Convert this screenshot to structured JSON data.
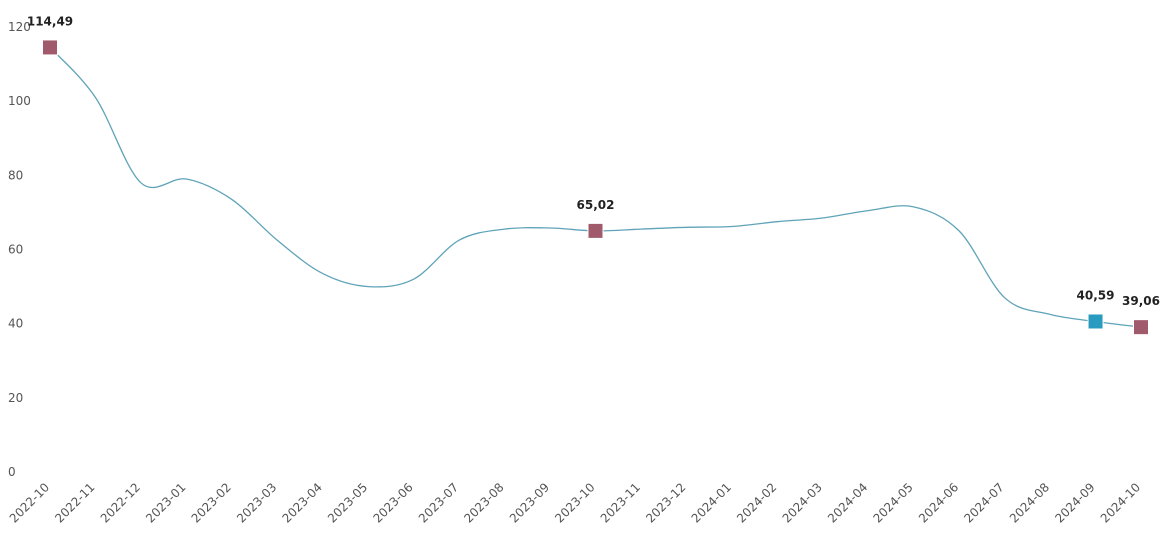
{
  "chart_data": {
    "type": "line",
    "title": "",
    "xlabel": "",
    "ylabel": "",
    "ylim": [
      0,
      120
    ],
    "yticks": [
      0,
      20,
      40,
      60,
      80,
      100,
      120
    ],
    "grid": false,
    "categories": [
      "2022-10",
      "2022-11",
      "2022-12",
      "2023-01",
      "2023-02",
      "2023-03",
      "2023-04",
      "2023-05",
      "2023-06",
      "2023-07",
      "2023-08",
      "2023-09",
      "2023-10",
      "2023-11",
      "2023-12",
      "2024-01",
      "2024-02",
      "2024-03",
      "2024-04",
      "2024-05",
      "2024-06",
      "2024-07",
      "2024-08",
      "2024-09",
      "2024-10"
    ],
    "series": [
      {
        "color": "#5fa3b8",
        "values": [
          114.49,
          101,
          78,
          79,
          73.5,
          62.5,
          53.5,
          50,
          52,
          62.5,
          65.5,
          65.8,
          65.02,
          65.5,
          66,
          66.2,
          67.5,
          68.5,
          70.5,
          71.5,
          65,
          47,
          42.5,
          40.59,
          39.06
        ]
      }
    ],
    "highlighted_points": [
      {
        "index": 0,
        "label": "114,49",
        "color": "#a05a6b"
      },
      {
        "index": 12,
        "label": "65,02",
        "color": "#a05a6b"
      },
      {
        "index": 23,
        "label": "40,59",
        "color": "#2a9bc0"
      },
      {
        "index": 24,
        "label": "39,06",
        "color": "#a05a6b"
      }
    ]
  }
}
